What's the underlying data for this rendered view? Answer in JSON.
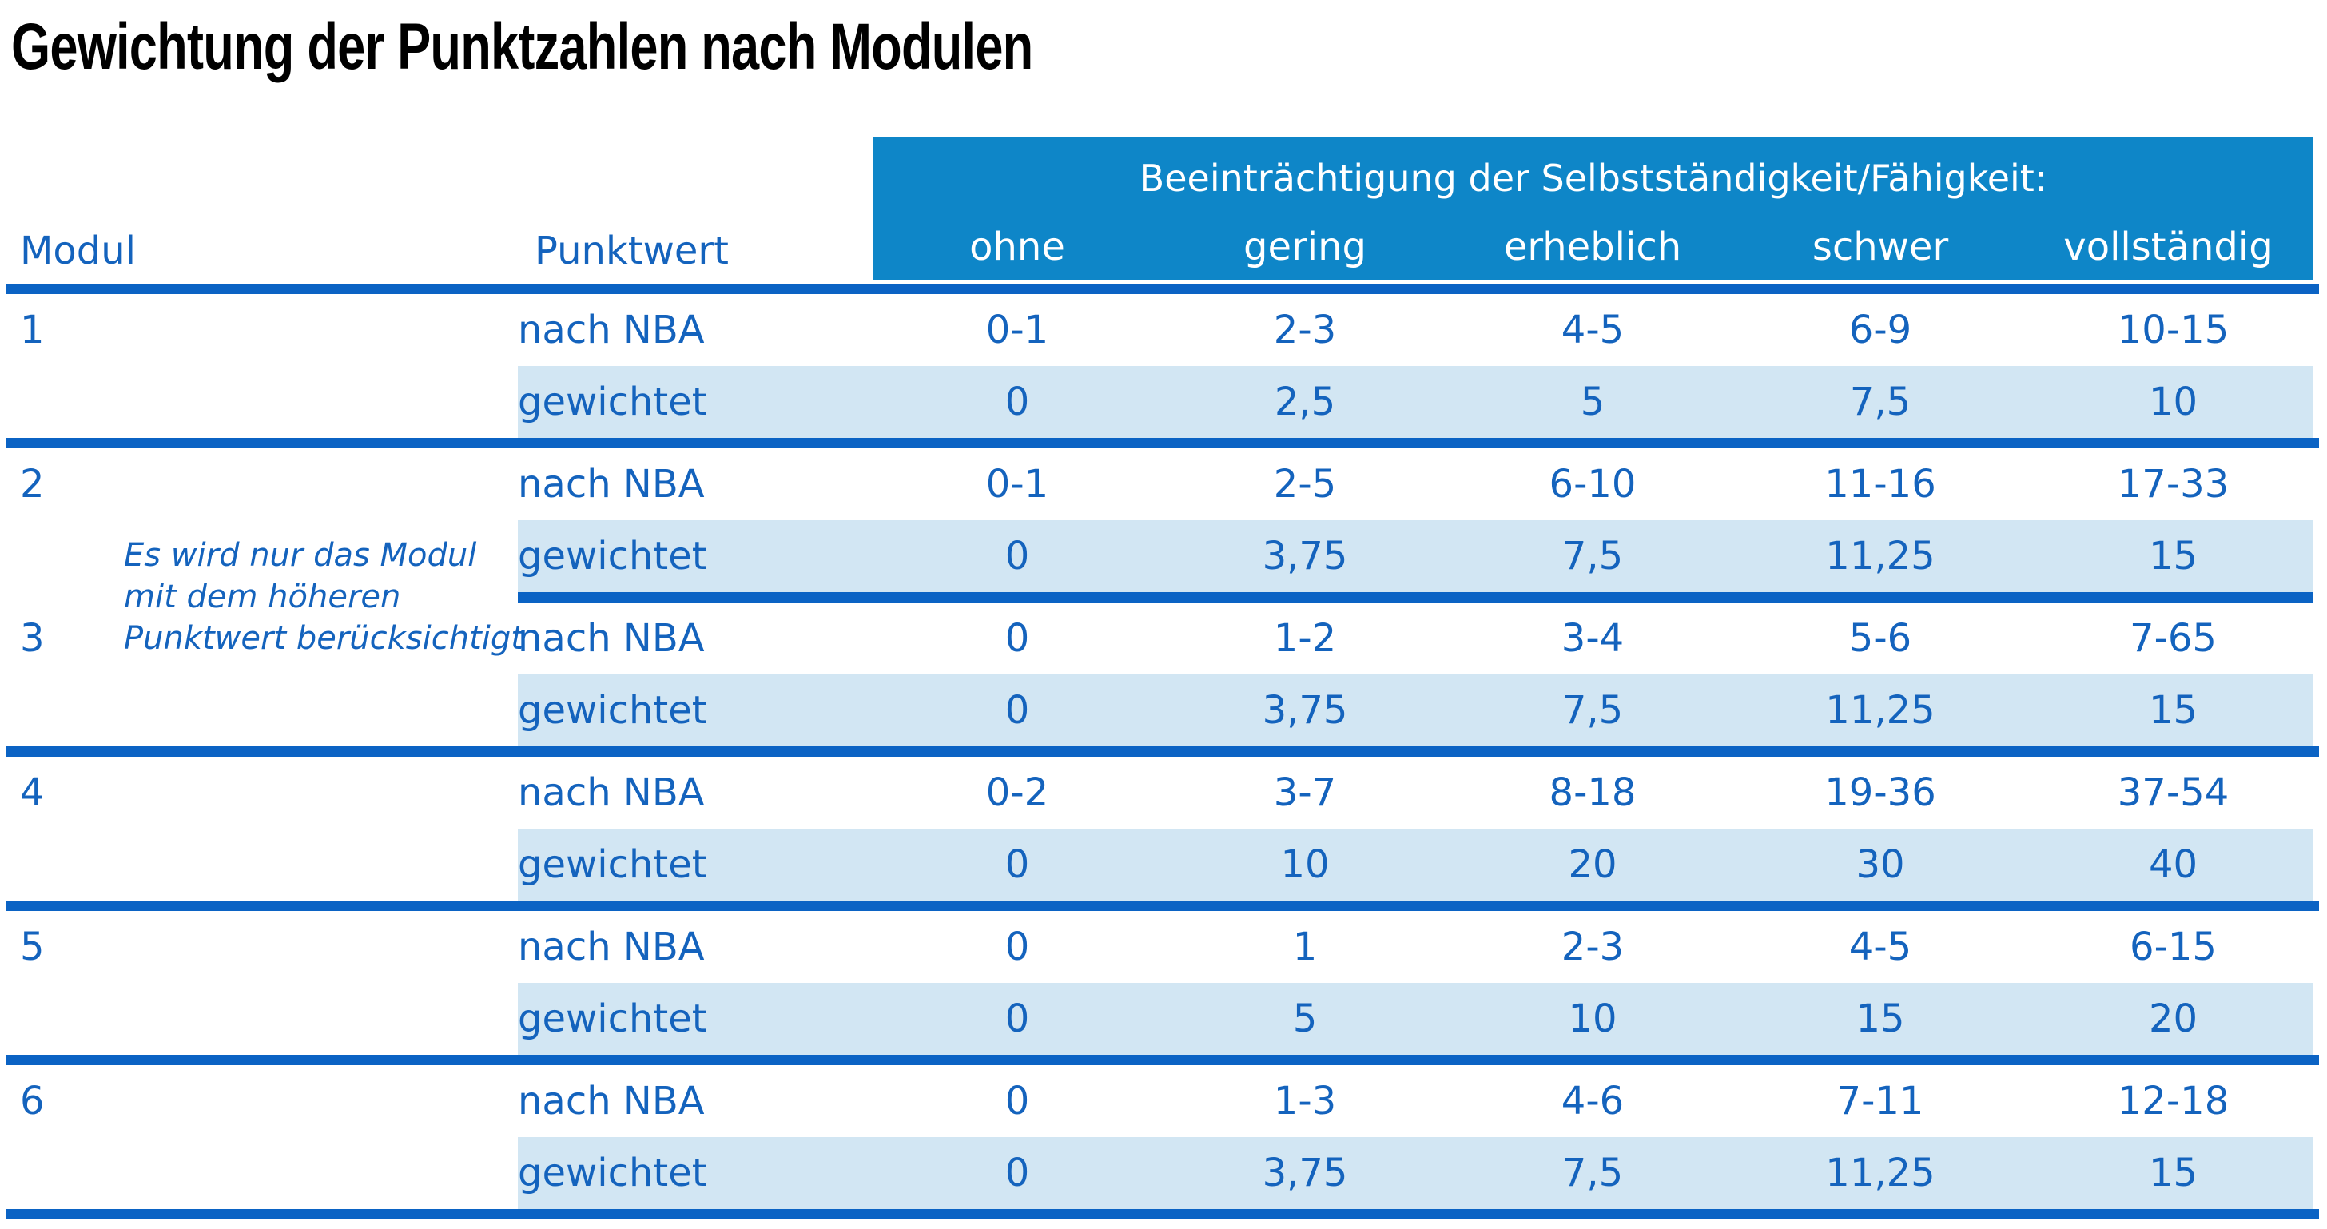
{
  "title": "Gewichtung der Punktzahlen nach Modulen",
  "colors": {
    "header_band_blue": "#0e86c8",
    "weighted_row_blue": "#d2e6f3",
    "rule_blue": "#0b63c4",
    "text_blue": "#1463bd",
    "header_text_white": "#ffffff",
    "title_black": "#000000"
  },
  "header": {
    "span_label": "Beeinträchtigung der Selbstständigkeit/Fähigkeit:",
    "col_modul": "Modul",
    "col_punktwert": "Punktwert",
    "levels": [
      "ohne",
      "gering",
      "erheblich",
      "schwer",
      "vollständig"
    ]
  },
  "note": {
    "text": "Es wird nur das Modul mit dem höheren Punktwert berücksichtigt",
    "lines": [
      "Es wird nur das Modul",
      "mit dem höheren",
      "Punktwert berücksichtigt"
    ]
  },
  "modules": [
    {
      "module": "1",
      "rows": [
        {
          "label": "nach NBA",
          "values": [
            "0-1",
            "2-3",
            "4-5",
            "6-9",
            "10-15"
          ]
        },
        {
          "label": "gewichtet",
          "values": [
            "0",
            "2,5",
            "5",
            "7,5",
            "10"
          ]
        }
      ]
    },
    {
      "module": "2",
      "rows": [
        {
          "label": "nach NBA",
          "values": [
            "0-1",
            "2-5",
            "6-10",
            "11-16",
            "17-33"
          ]
        },
        {
          "label": "gewichtet",
          "values": [
            "0",
            "3,75",
            "7,5",
            "11,25",
            "15"
          ]
        }
      ]
    },
    {
      "module": "3",
      "rows": [
        {
          "label": "nach NBA",
          "values": [
            "0",
            "1-2",
            "3-4",
            "5-6",
            "7-65"
          ]
        },
        {
          "label": "gewichtet",
          "values": [
            "0",
            "3,75",
            "7,5",
            "11,25",
            "15"
          ]
        }
      ]
    },
    {
      "module": "4",
      "rows": [
        {
          "label": "nach NBA",
          "values": [
            "0-2",
            "3-7",
            "8-18",
            "19-36",
            "37-54"
          ]
        },
        {
          "label": "gewichtet",
          "values": [
            "0",
            "10",
            "20",
            "30",
            "40"
          ]
        }
      ]
    },
    {
      "module": "5",
      "rows": [
        {
          "label": "nach NBA",
          "values": [
            "0",
            "1",
            "2-3",
            "4-5",
            "6-15"
          ]
        },
        {
          "label": "gewichtet",
          "values": [
            "0",
            "5",
            "10",
            "15",
            "20"
          ]
        }
      ]
    },
    {
      "module": "6",
      "rows": [
        {
          "label": "nach NBA",
          "values": [
            "0",
            "1-3",
            "4-6",
            "7-11",
            "12-18"
          ]
        },
        {
          "label": "gewichtet",
          "values": [
            "0",
            "3,75",
            "7,5",
            "11,25",
            "15"
          ]
        }
      ]
    }
  ]
}
